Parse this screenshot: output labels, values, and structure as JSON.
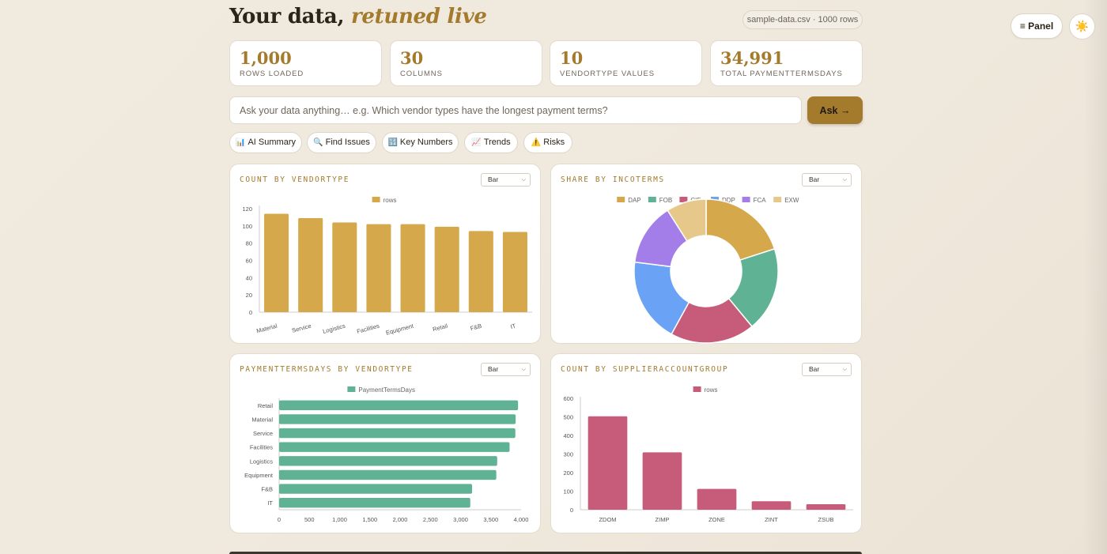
{
  "header": {
    "title_main": "Your data,",
    "title_accent": "retuned live",
    "file_info": "sample-data.csv · 1000 rows",
    "panel_label": "≡ Panel",
    "theme_icon": "☀️"
  },
  "stats": [
    {
      "value": "1,000",
      "label": "ROWS LOADED"
    },
    {
      "value": "30",
      "label": "COLUMNS"
    },
    {
      "value": "10",
      "label": "VENDORTYPE VALUES"
    },
    {
      "value": "34,991",
      "label": "TOTAL PAYMENTTERMSDAYS"
    }
  ],
  "ask": {
    "placeholder": "Ask your data anything… e.g. Which vendor types have the longest payment terms?",
    "button": "Ask →"
  },
  "chips": [
    {
      "icon": "📊",
      "label": "AI Summary"
    },
    {
      "icon": "🔍",
      "label": "Find Issues"
    },
    {
      "icon": "🔢",
      "label": "Key Numbers"
    },
    {
      "icon": "📈",
      "label": "Trends"
    },
    {
      "icon": "⚠️",
      "label": "Risks"
    }
  ],
  "colors": {
    "accent": "#a47a2c",
    "gold": "#d4a84b",
    "green": "#5fb394",
    "pink": "#c75b7a",
    "blue": "#6aa3f5",
    "purple": "#a47ee8",
    "sand": "#e6c98a"
  },
  "charts": [
    {
      "title": "COUNT BY VENDORTYPE",
      "select": "Bar",
      "chart_data": {
        "type": "bar",
        "legend": [
          "rows"
        ],
        "categories": [
          "Material",
          "Service",
          "Logistics",
          "Facilities",
          "Equipment",
          "Retail",
          "F&B",
          "IT"
        ],
        "values": [
          114,
          109,
          104,
          102,
          102,
          99,
          94,
          93
        ],
        "yticks": [
          "0",
          "20",
          "40",
          "60",
          "80",
          "100",
          "120"
        ],
        "ylim": [
          0,
          120
        ]
      }
    },
    {
      "title": "SHARE BY INCOTERMS",
      "select": "Bar",
      "chart_data": {
        "type": "pie",
        "donut": true,
        "categories": [
          "DAP",
          "FOB",
          "CIF",
          "DDP",
          "FCA",
          "EXW"
        ],
        "values": [
          20,
          19,
          19,
          19,
          14,
          9
        ]
      }
    },
    {
      "title": "PAYMENTTERMSDAYS BY VENDORTYPE",
      "select": "Bar",
      "chart_data": {
        "type": "bar",
        "orientation": "horizontal",
        "legend": [
          "PaymentTermsDays"
        ],
        "categories": [
          "Retail",
          "Material",
          "Service",
          "Facilities",
          "Logistics",
          "Equipment",
          "F&B",
          "IT"
        ],
        "values": [
          3950,
          3910,
          3905,
          3810,
          3605,
          3590,
          3190,
          3160
        ],
        "xticks": [
          "0",
          "500",
          "1,000",
          "1,500",
          "2,000",
          "2,500",
          "3,000",
          "3,500",
          "4,000"
        ],
        "xlim": [
          0,
          4000
        ]
      }
    },
    {
      "title": "COUNT BY SUPPLIERACCOUNTGROUP",
      "select": "Bar",
      "chart_data": {
        "type": "bar",
        "legend": [
          "rows"
        ],
        "categories": [
          "ZDOM",
          "ZIMP",
          "ZONE",
          "ZINT",
          "ZSUB"
        ],
        "values": [
          503,
          309,
          112,
          46,
          30
        ],
        "yticks": [
          "0",
          "100",
          "200",
          "300",
          "400",
          "500",
          "600"
        ],
        "ylim": [
          0,
          600
        ]
      }
    }
  ]
}
